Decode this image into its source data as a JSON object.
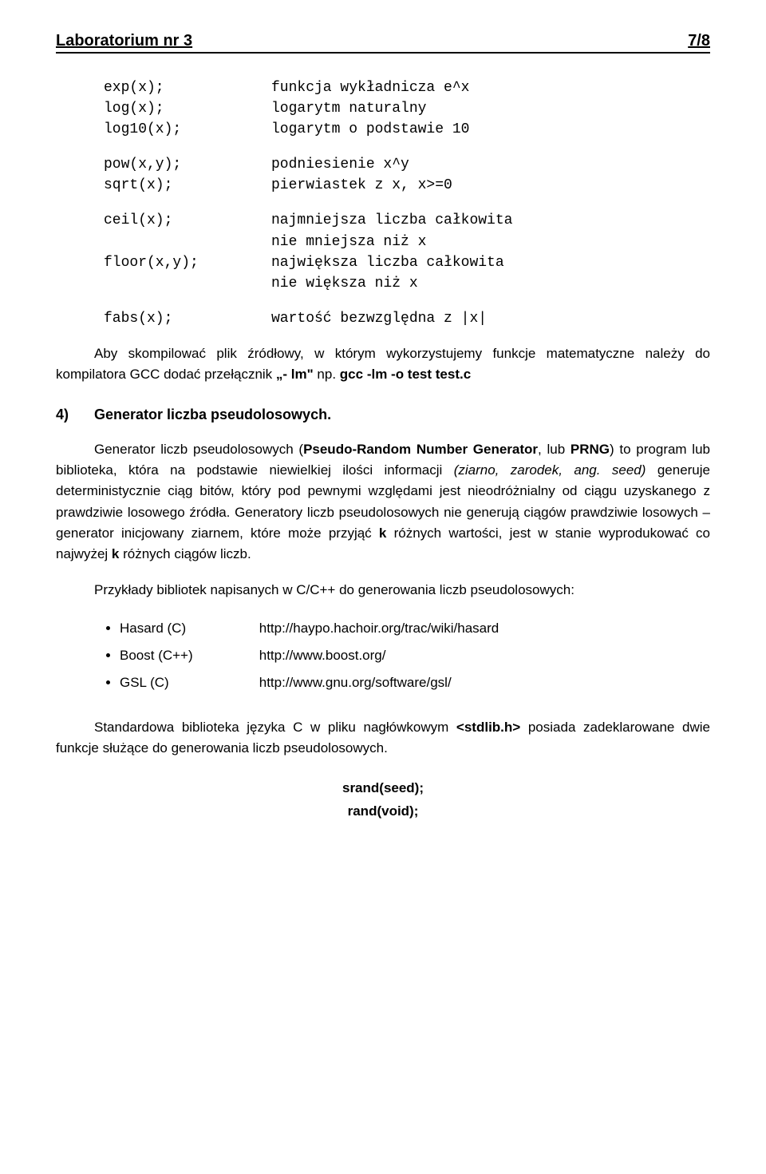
{
  "header": {
    "title": "Laboratorium nr 3",
    "page": "7/8"
  },
  "functions": {
    "group1": [
      {
        "name": "exp(x);",
        "desc": "funkcja wykładnicza e^x"
      },
      {
        "name": "log(x);",
        "desc": "logarytm naturalny"
      },
      {
        "name": "log10(x);",
        "desc": "logarytm o podstawie 10"
      }
    ],
    "group2": [
      {
        "name": "pow(x,y);",
        "desc": "podniesienie x^y"
      },
      {
        "name": "sqrt(x);",
        "desc": "pierwiastek z x, x>=0"
      }
    ],
    "group3": [
      {
        "name": "ceil(x);",
        "desc": "najmniejsza liczba całkowita"
      },
      {
        "name": "",
        "desc": "nie mniejsza niż x"
      },
      {
        "name": "floor(x,y);",
        "desc": "największa liczba całkowita"
      },
      {
        "name": "",
        "desc": "nie większa niż x"
      }
    ],
    "group4": [
      {
        "name": "fabs(x);",
        "desc": "wartość bezwzględna z |x|"
      }
    ]
  },
  "compile_note": {
    "pre": "Aby skompilować plik źródłowy, w którym wykorzystujemy funkcje matematyczne należy do kompilatora GCC dodać przełącznik ",
    "switch": "„- lm\"",
    "mid": " np. ",
    "cmd": "gcc -lm -o test test.c"
  },
  "section4": {
    "num": "4)",
    "title": "Generator liczba pseudolosowych."
  },
  "prng_para": {
    "t1": "Generator liczb pseudolosowych (",
    "t2": "Pseudo-Random Number Generator",
    "t3": ", lub ",
    "t4": "PRNG",
    "t5": ") to program lub biblioteka, która na podstawie niewielkiej ilości informacji ",
    "t6": "(ziarno, zarodek, ang. seed)",
    "t7": " generuje deterministycznie ciąg bitów, który pod pewnymi względami jest nieodróżnialny od ciągu uzyskanego z prawdziwie losowego źródła. Generatory liczb pseudolosowych nie generują ciągów prawdziwie losowych – generator inicjowany ziarnem, które może przyjąć ",
    "t8": "k",
    "t9": " różnych wartości, jest w stanie wyprodukować co najwyżej ",
    "t10": "k",
    "t11": " różnych ciągów liczb."
  },
  "libs_intro": "Przykłady bibliotek napisanych w C/C++ do generowania liczb pseudolosowych:",
  "libs": [
    {
      "name": "Hasard (C)",
      "url": "http://haypo.hachoir.org/trac/wiki/hasard"
    },
    {
      "name": "Boost (C++)",
      "url": "http://www.boost.org/"
    },
    {
      "name": "GSL (C)",
      "url": "http://www.gnu.org/software/gsl/"
    }
  ],
  "stdlib_para": {
    "t1": "Standardowa biblioteka języka C w pliku nagłówkowym ",
    "t2": "<stdlib.h>",
    "t3": " posiada zadeklarowane dwie funkcje służące do generowania liczb pseudolosowych."
  },
  "proto": {
    "srand": "srand(seed);",
    "rand": "rand(void);"
  }
}
